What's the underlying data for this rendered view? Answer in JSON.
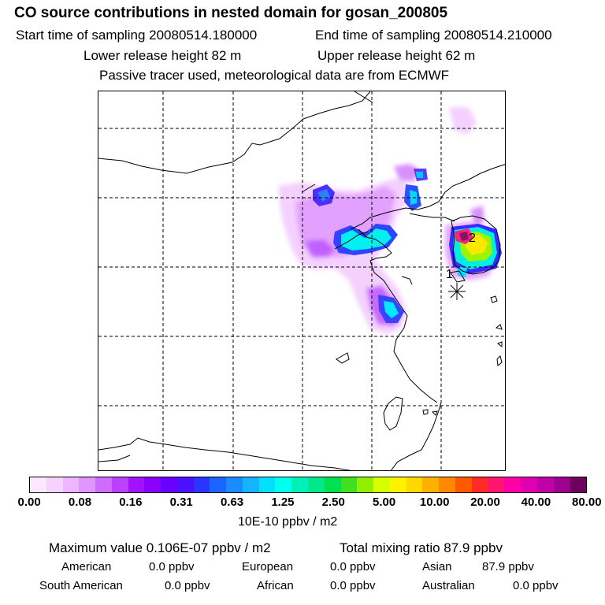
{
  "header": {
    "title": "CO  source contributions in nested domain for gosan_200805",
    "start": "Start time of sampling 20080514.180000",
    "end": "End time of sampling 20080514.210000",
    "lower": "Lower release height   82 m",
    "upper": "Upper release height   62 m",
    "tracer": "Passive tracer used, meteorological data are from ECMWF"
  },
  "map": {
    "marker_labels": [
      "1",
      "2"
    ]
  },
  "colorbar": {
    "colors": [
      "#fbe8ff",
      "#f6d2ff",
      "#eeb6ff",
      "#e095ff",
      "#cf6bff",
      "#bb40ff",
      "#a411ff",
      "#8a00ff",
      "#6a00ff",
      "#4a10ff",
      "#2a36ff",
      "#1a64ff",
      "#1a8cff",
      "#14b4ff",
      "#00e0ff",
      "#00ffee",
      "#00f0b8",
      "#00e888",
      "#00e050",
      "#40e020",
      "#90f000",
      "#d8ff00",
      "#fff200",
      "#ffd800",
      "#ffb000",
      "#ff8800",
      "#ff5a00",
      "#ff2b2b",
      "#ff1470",
      "#ff00a8",
      "#e000b0",
      "#c000a8",
      "#a00090",
      "#700060"
    ],
    "ticks": [
      "0.00",
      "0.08",
      "0.16",
      "0.31",
      "0.63",
      "1.25",
      "2.50",
      "5.00",
      "10.00",
      "20.00",
      "40.00",
      "80.00"
    ],
    "units": "10E-10 ppbv / m2"
  },
  "summary": {
    "maximum": "Maximum value  0.106E-07 ppbv / m2",
    "total": "Total mixing ratio       87.9 ppbv",
    "regions": [
      {
        "name": "American",
        "value": "0.0 ppbv"
      },
      {
        "name": "European",
        "value": "0.0 ppbv"
      },
      {
        "name": "Asian",
        "value": "87.9 ppbv"
      },
      {
        "name": "South American",
        "value": "0.0 ppbv"
      },
      {
        "name": "African",
        "value": "0.0 ppbv"
      },
      {
        "name": "Australian",
        "value": "0.0 ppbv"
      }
    ]
  }
}
